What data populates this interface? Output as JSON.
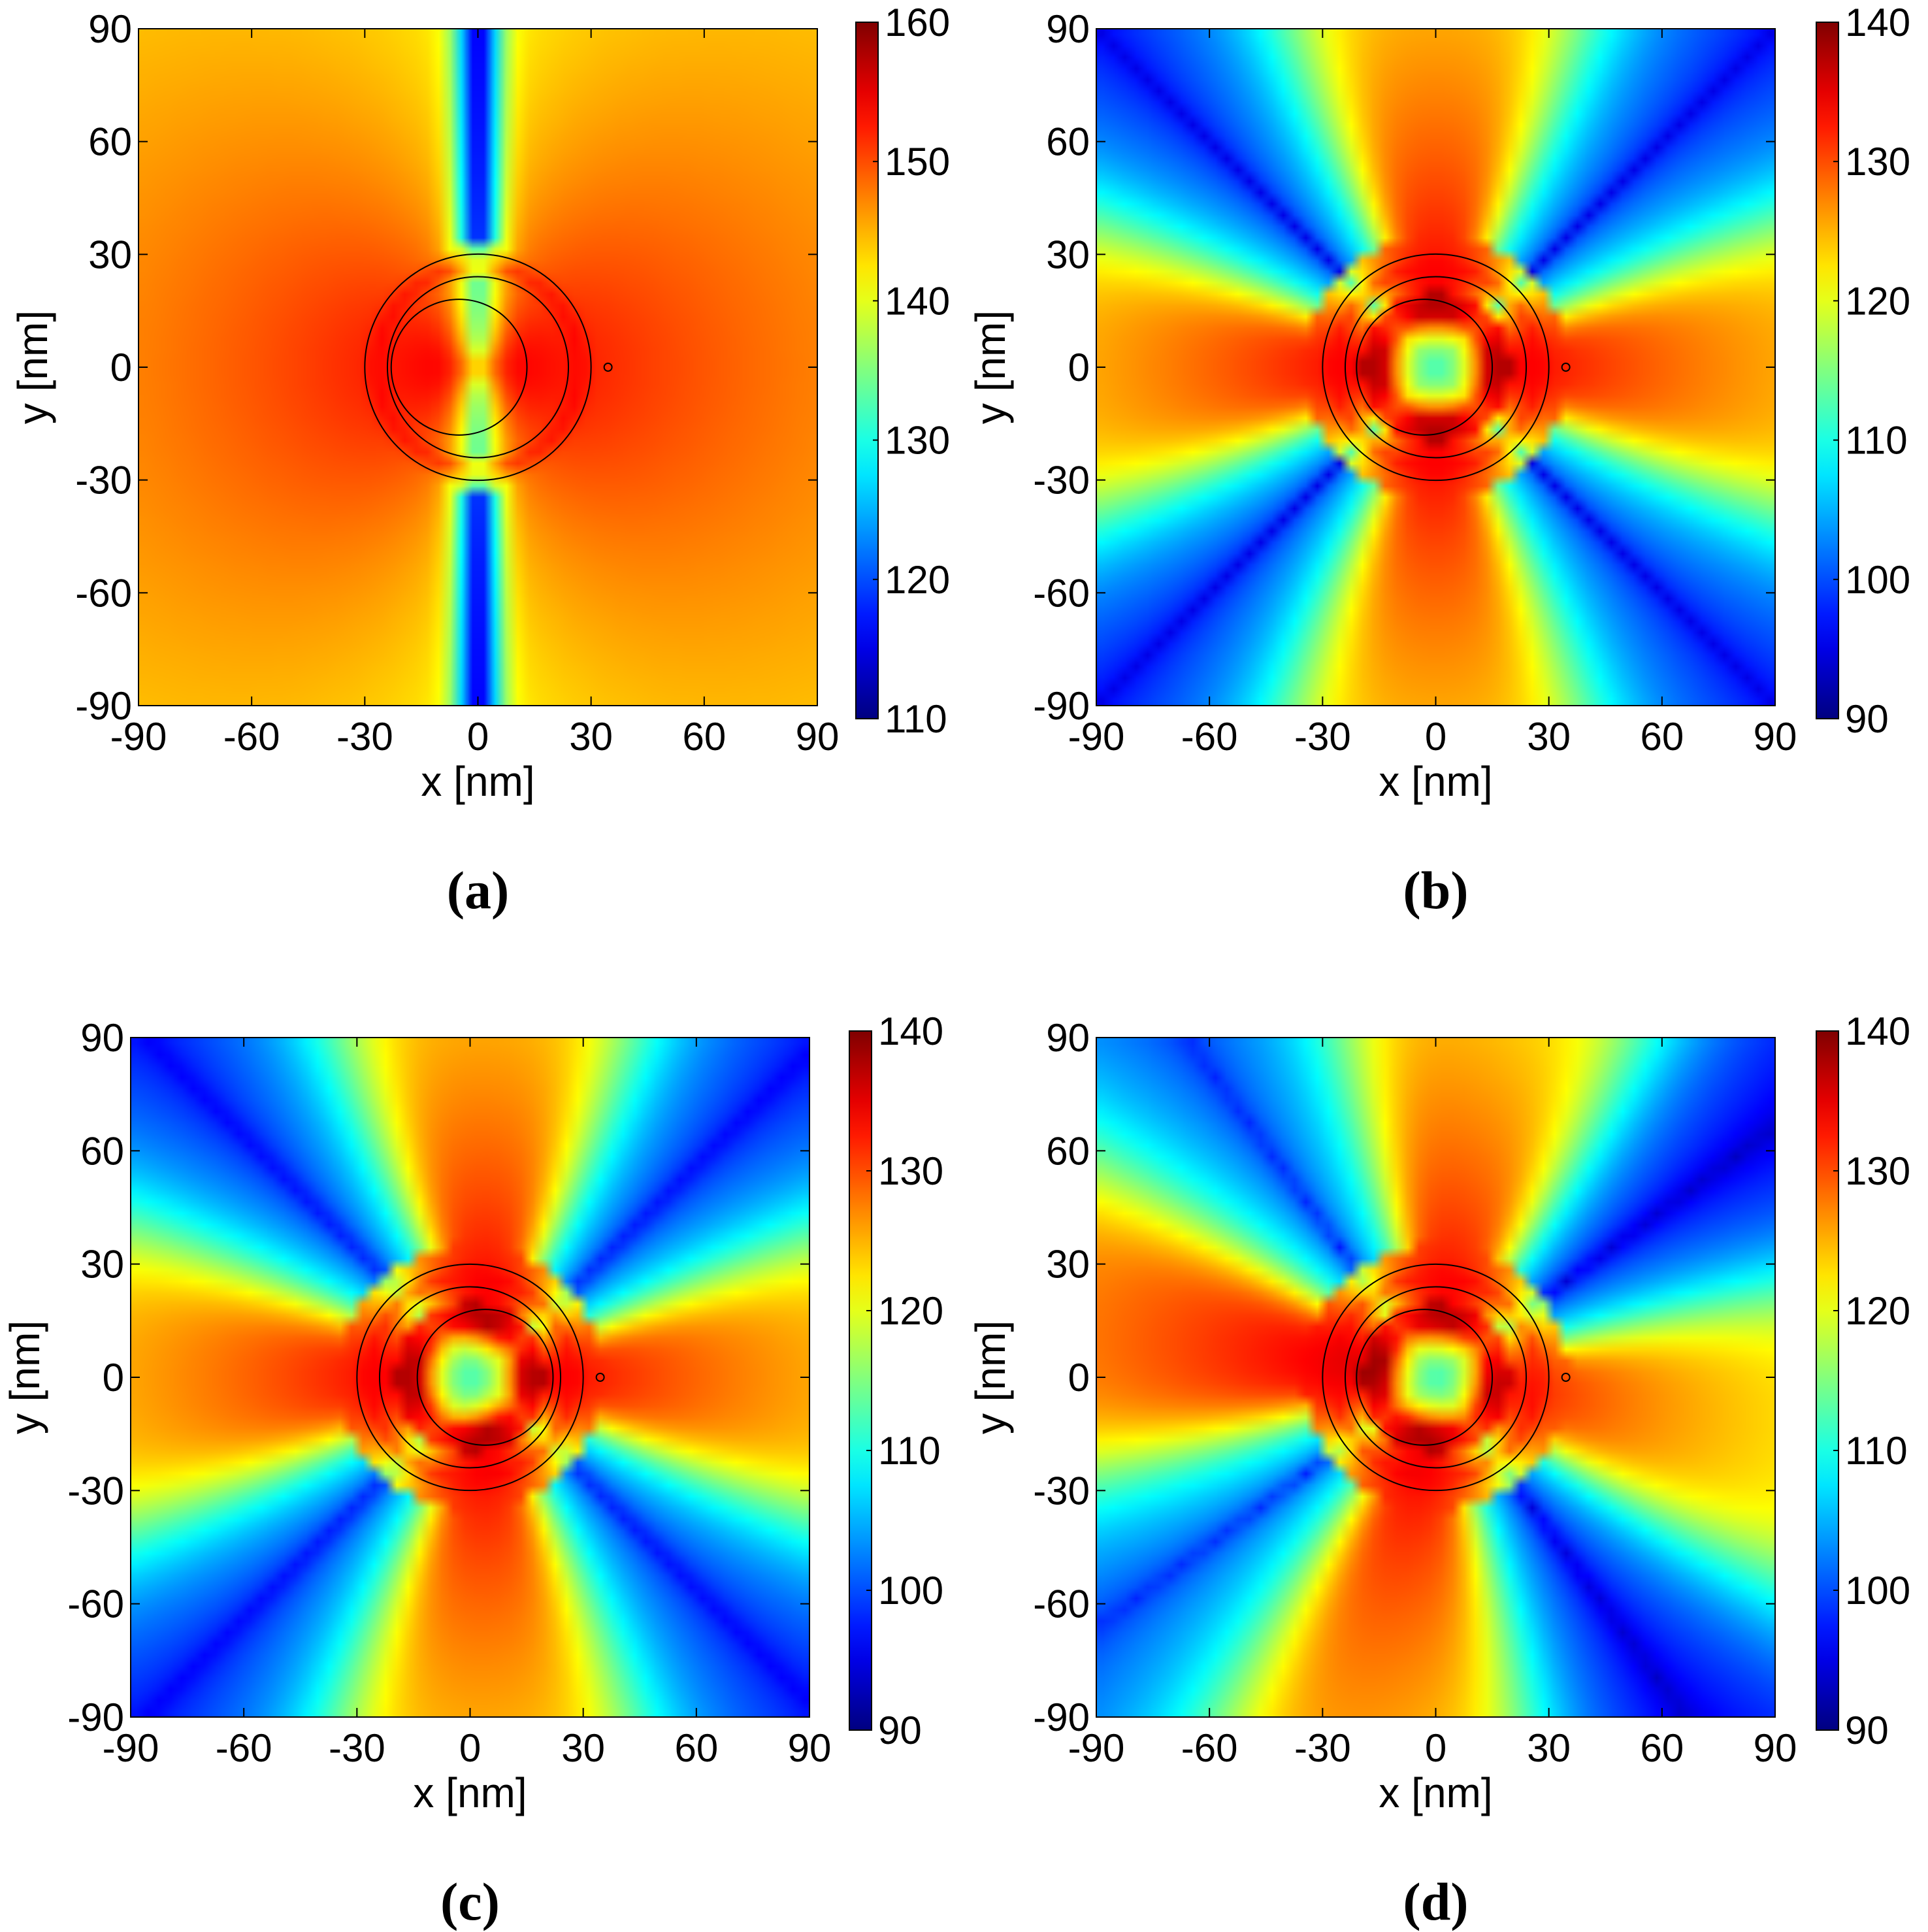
{
  "chart_data": [
    {
      "type": "heatmap",
      "caption": "(a)",
      "xlabel": "x [nm]",
      "ylabel": "y [nm]",
      "xlim": [
        -90,
        90
      ],
      "ylim": [
        -90,
        90
      ],
      "xticks": [
        "-90",
        "-60",
        "-30",
        "0",
        "30",
        "60",
        "90"
      ],
      "yticks": [
        "90",
        "60",
        "30",
        "0",
        "-30",
        "-60",
        "-90"
      ],
      "colorbar": {
        "min": 110,
        "max": 160,
        "ticks": [
          "160",
          "150",
          "140",
          "130",
          "120",
          "110"
        ]
      },
      "pattern": "dipole-x"
    },
    {
      "type": "heatmap",
      "caption": "(b)",
      "xlabel": "x [nm]",
      "ylabel": "y [nm]",
      "xlim": [
        -90,
        90
      ],
      "ylim": [
        -90,
        90
      ],
      "xticks": [
        "-90",
        "-60",
        "-30",
        "0",
        "30",
        "60",
        "90"
      ],
      "yticks": [
        "90",
        "60",
        "30",
        "0",
        "-30",
        "-60",
        "-90"
      ],
      "colorbar": {
        "min": 90,
        "max": 140,
        "ticks": [
          "140",
          "130",
          "120",
          "110",
          "100",
          "90"
        ]
      },
      "pattern": "quadrupole"
    },
    {
      "type": "heatmap",
      "caption": "(c)",
      "xlabel": "x [nm]",
      "ylabel": "y [nm]",
      "xlim": [
        -90,
        90
      ],
      "ylim": [
        -90,
        90
      ],
      "xticks": [
        "-90",
        "-60",
        "-30",
        "0",
        "30",
        "60",
        "90"
      ],
      "yticks": [
        "90",
        "60",
        "30",
        "0",
        "-30",
        "-60",
        "-90"
      ],
      "colorbar": {
        "min": 90,
        "max": 140,
        "ticks": [
          "140",
          "130",
          "120",
          "110",
          "100",
          "90"
        ]
      },
      "pattern": "quadrupole-shifted"
    },
    {
      "type": "heatmap",
      "caption": "(d)",
      "xlabel": "x [nm]",
      "ylabel": "y [nm]",
      "xlim": [
        -90,
        90
      ],
      "ylim": [
        -90,
        90
      ],
      "xticks": [
        "-90",
        "-60",
        "-30",
        "0",
        "30",
        "60",
        "90"
      ],
      "yticks": [
        "90",
        "60",
        "30",
        "0",
        "-30",
        "-60",
        "-90"
      ],
      "colorbar": {
        "min": 90,
        "max": 140,
        "ticks": [
          "140",
          "130",
          "120",
          "110",
          "100",
          "90"
        ]
      },
      "pattern": "quadrupole-skewed"
    }
  ],
  "colors": {
    "colormap": [
      "#00008f",
      "#0000ff",
      "#00ffff",
      "#ffff00",
      "#ff0000",
      "#800000"
    ],
    "axes": "#000000",
    "background": "#ffffff"
  }
}
